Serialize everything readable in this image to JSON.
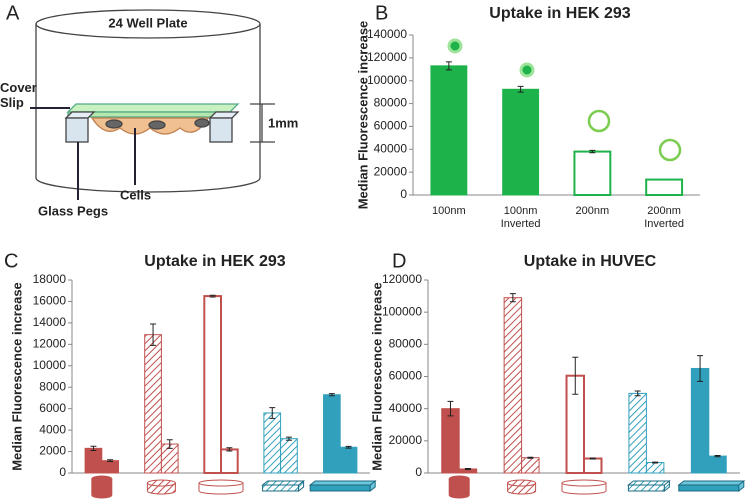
{
  "panel_a": {
    "panel_label": "A",
    "plate": "24 Well Plate",
    "cover_slip": "Cover Slip",
    "height": "1mm",
    "pegs": "Glass Pegs",
    "cells": "Cells"
  },
  "chart_data": [
    {
      "type": "bar",
      "panel_label": "B",
      "title": "Uptake in HEK 293",
      "y_label": "Median Fluorescence increase",
      "categories": [
        "100nm",
        "100nm Inverted",
        "200nm",
        "200nm Inverted"
      ],
      "values": [
        113000,
        92500,
        38000,
        13500
      ],
      "errors": [
        3500,
        2500,
        1000,
        null
      ],
      "color": "#1db34a",
      "fills": [
        "solid",
        "solid",
        "outline",
        "outline"
      ],
      "ylim": [
        0,
        140000
      ],
      "yticks": [
        0,
        20000,
        40000,
        60000,
        80000,
        100000,
        120000,
        140000
      ]
    },
    {
      "type": "bar",
      "panel_label": "C",
      "title": "Uptake in HEK 293",
      "y_label": "Median Fluorescence increase",
      "groups": [
        {
          "values": [
            2300,
            1150
          ],
          "errors": [
            200,
            80
          ],
          "color": "#c0504d",
          "fill": "solid",
          "icon": "cylinder"
        },
        {
          "values": [
            12900,
            2700
          ],
          "errors": [
            1000,
            400
          ],
          "color": "#c0504d",
          "fill": "hatched",
          "icon": "cylinder"
        },
        {
          "values": [
            16500,
            2200
          ],
          "errors": [
            80,
            150
          ],
          "color": "#c0504d",
          "fill": "outline",
          "icon": "cylinder"
        },
        {
          "values": [
            5600,
            3200
          ],
          "errors": [
            500,
            150
          ],
          "color": "#31a0bc",
          "fill": "hatched",
          "icon": "box"
        },
        {
          "values": [
            7300,
            2400
          ],
          "errors": [
            100,
            80
          ],
          "color": "#31a0bc",
          "fill": "solid",
          "icon": "box"
        }
      ],
      "ylim": [
        0,
        18000
      ],
      "yticks": [
        0,
        2000,
        4000,
        6000,
        8000,
        10000,
        12000,
        14000,
        16000,
        18000
      ]
    },
    {
      "type": "bar",
      "panel_label": "D",
      "title": "Uptake in HUVEC",
      "y_label": "Median Fluorescence increase",
      "groups": [
        {
          "values": [
            40000,
            2500
          ],
          "errors": [
            4500,
            300
          ],
          "color": "#c0504d",
          "fill": "solid",
          "icon": "cylinder"
        },
        {
          "values": [
            109000,
            9500
          ],
          "errors": [
            2500,
            300
          ],
          "color": "#c0504d",
          "fill": "hatched",
          "icon": "cylinder"
        },
        {
          "values": [
            60500,
            9000
          ],
          "errors": [
            11500,
            300
          ],
          "color": "#c0504d",
          "fill": "outline",
          "icon": "cylinder"
        },
        {
          "values": [
            49500,
            6500
          ],
          "errors": [
            1500,
            300
          ],
          "color": "#31a0bc",
          "fill": "hatched",
          "icon": "box"
        },
        {
          "values": [
            65000,
            10500
          ],
          "errors": [
            8000,
            400
          ],
          "color": "#31a0bc",
          "fill": "solid",
          "icon": "box"
        }
      ],
      "ylim": [
        0,
        120000
      ],
      "yticks": [
        0,
        20000,
        40000,
        60000,
        80000,
        100000,
        120000
      ]
    }
  ]
}
